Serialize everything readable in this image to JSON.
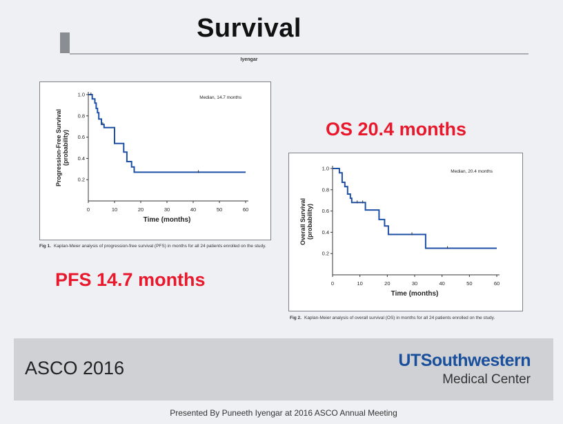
{
  "slide": {
    "title": "Survival",
    "author": "Iyengar",
    "pfs_callout": "PFS 14.7 months",
    "os_callout": "OS 20.4 months",
    "conference": "ASCO 2016",
    "institution_line1": "UTSouthwestern",
    "institution_line2": "Medical Center",
    "presenter": "Presented By Puneeth Iyengar at 2016 ASCO Annual Meeting"
  },
  "colors": {
    "curve": "#1d4fa6",
    "callout": "#e8192c",
    "brand": "#1a4f9c"
  },
  "chart_data": [
    {
      "type": "line",
      "step": true,
      "title": "",
      "xlabel": "Time (months)",
      "ylabel": "Progression-Free Survival (probability)",
      "ylabel_lines": [
        "Progression-Free Survival",
        "(probability)"
      ],
      "annotation": "Median, 14.7 months",
      "caption_label": "Fig 1.",
      "caption_text": "Kaplan-Meier analysis of progression-free survival (PFS) in months for all 24 patients enrolled on the study.",
      "xlim": [
        0,
        60
      ],
      "ylim": [
        0,
        1.0
      ],
      "xticks": [
        0,
        10,
        20,
        30,
        40,
        50,
        60
      ],
      "yticks": [
        0.2,
        0.4,
        0.6,
        0.8,
        1.0
      ],
      "x": [
        0,
        1.5,
        1.5,
        2.5,
        2.5,
        3,
        3,
        3.5,
        3.5,
        4,
        4,
        5,
        5,
        6,
        6,
        10,
        10,
        13.5,
        13.5,
        14.7,
        14.7,
        16.5,
        16.5,
        17.5,
        17.5,
        60
      ],
      "y": [
        1.0,
        1.0,
        0.96,
        0.96,
        0.92,
        0.92,
        0.87,
        0.87,
        0.83,
        0.83,
        0.77,
        0.77,
        0.72,
        0.72,
        0.69,
        0.69,
        0.54,
        0.54,
        0.46,
        0.46,
        0.37,
        0.37,
        0.32,
        0.32,
        0.27,
        0.27
      ],
      "censor_x": [
        1,
        5.5,
        42
      ]
    },
    {
      "type": "line",
      "step": true,
      "title": "",
      "xlabel": "Time (months)",
      "ylabel": "Overall Survival (probability)",
      "ylabel_lines": [
        "Overall Survival",
        "(probability)"
      ],
      "annotation": "Median, 20.4 months",
      "caption_label": "Fig 2.",
      "caption_text": "Kaplan-Meier analysis of overall survival (OS) in months for all 24 patients enrolled on the study.",
      "xlim": [
        0,
        60
      ],
      "ylim": [
        0,
        1.0
      ],
      "xticks": [
        0,
        10,
        20,
        30,
        40,
        50,
        60
      ],
      "yticks": [
        0.2,
        0.4,
        0.6,
        0.8,
        1.0
      ],
      "x": [
        0,
        2.5,
        2.5,
        3.5,
        3.5,
        4.5,
        4.5,
        5.5,
        5.5,
        6.5,
        6.5,
        7,
        7,
        12,
        12,
        17,
        17,
        19,
        19,
        20.4,
        20.4,
        34,
        34,
        60
      ],
      "y": [
        1.0,
        1.0,
        0.96,
        0.96,
        0.87,
        0.87,
        0.83,
        0.83,
        0.76,
        0.76,
        0.72,
        0.72,
        0.68,
        0.68,
        0.61,
        0.61,
        0.52,
        0.52,
        0.46,
        0.46,
        0.38,
        0.38,
        0.25,
        0.25
      ],
      "censor_x": [
        9,
        11,
        29,
        42
      ]
    }
  ]
}
